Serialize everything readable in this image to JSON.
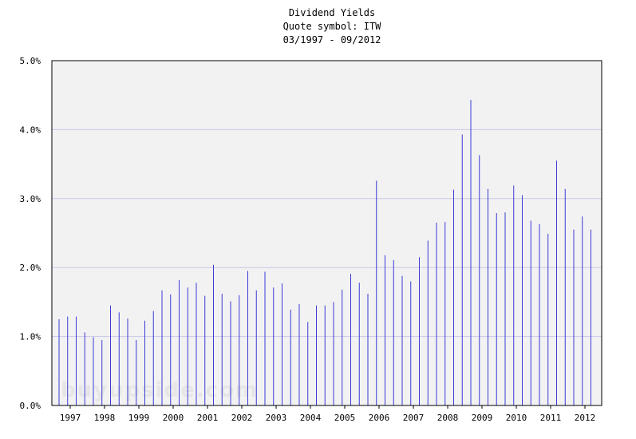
{
  "chart_data": {
    "type": "bar",
    "title": "Dividend Yields",
    "subtitle": "Quote symbol: ITW",
    "date_range": "03/1997 - 09/2012",
    "xlabel": "",
    "ylabel": "",
    "ylim": [
      0,
      5
    ],
    "y_ticks": [
      "0.0%",
      "1.0%",
      "2.0%",
      "3.0%",
      "4.0%",
      "5.0%"
    ],
    "x_tick_labels": [
      "1997",
      "1998",
      "1999",
      "2000",
      "2001",
      "2002",
      "2003",
      "2004",
      "2005",
      "2006",
      "2007",
      "2008",
      "2009",
      "2010",
      "2011",
      "2012"
    ],
    "grid": true,
    "legend": "none",
    "watermark": "buyupside.com",
    "colors": {
      "bar": "#3b3bd8",
      "plot_bg": "#f2f2f2",
      "grid": "#c8c8e8"
    },
    "series": [
      {
        "values": [
          1.25,
          1.29,
          1.29,
          1.06,
          0.99,
          0.95,
          1.45,
          1.35,
          1.26,
          0.95,
          1.23,
          1.37,
          1.67,
          1.61,
          1.82,
          1.71,
          1.78,
          1.59,
          2.04,
          1.62,
          1.51,
          1.6,
          1.95,
          1.67,
          1.94,
          1.71,
          1.77,
          1.39,
          1.47,
          1.21,
          1.45,
          1.45,
          1.5,
          1.68,
          1.91,
          1.78,
          1.62,
          3.26,
          2.18,
          2.11,
          1.88,
          1.8,
          2.15,
          2.39,
          2.65,
          2.66,
          3.13,
          3.93,
          4.43,
          3.63,
          3.14,
          2.79,
          2.8,
          3.19,
          3.05,
          2.68,
          2.63,
          2.49,
          3.55,
          3.14,
          2.55,
          2.74,
          2.55
        ]
      }
    ]
  }
}
